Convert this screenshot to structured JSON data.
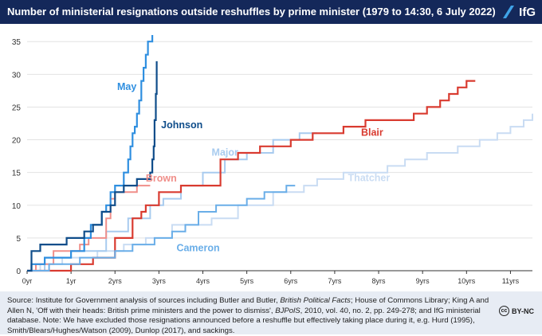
{
  "header": {
    "title": "Number of ministerial resignations outside reshuffles by prime minister (1979 to 14:30, 6 July 2022)",
    "logo_text": "IfG"
  },
  "footer": {
    "source_line1": "Source: Institute for Government analysis of sources including Butler and Butler, ",
    "source_italic1": "British Political Facts",
    "source_line1_end": "; House of Commons Library;",
    "source_line2": "King A and Allen N, 'Off with their heads: British prime ministers and the power to dismiss', ",
    "source_italic2": "BJPolS",
    "source_line2_end": ", 2010, vol. 40, no. 2,",
    "source_line3": "pp. 249-278; and IfG ministerial database. Note: We have excluded those resignations announced before a reshuffle but effectively taking place during it, e.g. Hurd (1995), Smith/Blears/Hughes/Watson (2009), Dunlop (2017), and sackings.",
    "license_icon": "cc",
    "license_text": "BY-NC"
  },
  "chart_data": {
    "type": "line",
    "xlabel": "",
    "ylabel": "",
    "xlim": [
      0,
      11.5
    ],
    "ylim": [
      0,
      36
    ],
    "x_ticks": [
      0,
      1,
      2,
      3,
      4,
      5,
      6,
      7,
      8,
      9,
      10,
      11
    ],
    "x_tick_labels": [
      "0yr",
      "1yr",
      "2yrs",
      "3yrs",
      "4yrs",
      "5yrs",
      "6yrs",
      "7yrs",
      "8yrs",
      "9yrs",
      "10yrs",
      "11yrs"
    ],
    "y_ticks": [
      0,
      5,
      10,
      15,
      20,
      25,
      30,
      35
    ],
    "grid": "horizontal",
    "series": [
      {
        "name": "Thatcher",
        "color": "#c9dcf3",
        "label_at": [
          7.3,
          13.7
        ],
        "points": [
          [
            0,
            0
          ],
          [
            0.3,
            0
          ],
          [
            0.3,
            1
          ],
          [
            0.8,
            1
          ],
          [
            0.8,
            2
          ],
          [
            1.6,
            2
          ],
          [
            1.6,
            3
          ],
          [
            2.2,
            3
          ],
          [
            2.2,
            4
          ],
          [
            2.7,
            4
          ],
          [
            2.7,
            5
          ],
          [
            3.3,
            5
          ],
          [
            3.3,
            7
          ],
          [
            4.2,
            7
          ],
          [
            4.2,
            8
          ],
          [
            4.8,
            8
          ],
          [
            4.8,
            10
          ],
          [
            5.6,
            10
          ],
          [
            5.6,
            12
          ],
          [
            6.3,
            12
          ],
          [
            6.3,
            13
          ],
          [
            6.6,
            13
          ],
          [
            6.6,
            14
          ],
          [
            7.2,
            14
          ],
          [
            7.2,
            15
          ],
          [
            8.2,
            15
          ],
          [
            8.2,
            16
          ],
          [
            8.6,
            16
          ],
          [
            8.6,
            17
          ],
          [
            9.1,
            17
          ],
          [
            9.1,
            18
          ],
          [
            9.8,
            18
          ],
          [
            9.8,
            19
          ],
          [
            10.3,
            19
          ],
          [
            10.3,
            20
          ],
          [
            10.7,
            20
          ],
          [
            10.7,
            21
          ],
          [
            11,
            21
          ],
          [
            11,
            22
          ],
          [
            11.3,
            22
          ],
          [
            11.3,
            23
          ],
          [
            11.5,
            23
          ],
          [
            11.5,
            24
          ]
        ]
      },
      {
        "name": "Major",
        "color": "#a8cbef",
        "label_at": [
          4.2,
          17.6
        ],
        "points": [
          [
            0,
            0
          ],
          [
            0.4,
            0
          ],
          [
            0.4,
            2
          ],
          [
            1.0,
            2
          ],
          [
            1.0,
            3
          ],
          [
            1.8,
            3
          ],
          [
            1.8,
            6
          ],
          [
            2.3,
            6
          ],
          [
            2.3,
            8
          ],
          [
            2.8,
            8
          ],
          [
            2.8,
            10
          ],
          [
            3.1,
            10
          ],
          [
            3.1,
            11
          ],
          [
            3.5,
            11
          ],
          [
            3.5,
            13
          ],
          [
            4.0,
            13
          ],
          [
            4.0,
            15
          ],
          [
            4.5,
            15
          ],
          [
            4.5,
            17
          ],
          [
            5.0,
            17
          ],
          [
            5.0,
            18
          ],
          [
            5.6,
            18
          ],
          [
            5.6,
            20
          ],
          [
            6.2,
            20
          ],
          [
            6.2,
            21
          ],
          [
            6.6,
            21
          ]
        ]
      },
      {
        "name": "Blair",
        "color": "#d93b30",
        "label_at": [
          7.6,
          20.6
        ],
        "points": [
          [
            0,
            0
          ],
          [
            1.0,
            0
          ],
          [
            1.0,
            1
          ],
          [
            1.5,
            1
          ],
          [
            1.5,
            2
          ],
          [
            2.0,
            2
          ],
          [
            2.0,
            5
          ],
          [
            2.4,
            5
          ],
          [
            2.4,
            8
          ],
          [
            2.6,
            8
          ],
          [
            2.6,
            9
          ],
          [
            2.7,
            9
          ],
          [
            2.7,
            10
          ],
          [
            3.0,
            10
          ],
          [
            3.0,
            12
          ],
          [
            3.5,
            12
          ],
          [
            3.5,
            13
          ],
          [
            4.4,
            13
          ],
          [
            4.4,
            17
          ],
          [
            4.8,
            17
          ],
          [
            4.8,
            18
          ],
          [
            5.3,
            18
          ],
          [
            5.3,
            19
          ],
          [
            6.0,
            19
          ],
          [
            6.0,
            20
          ],
          [
            6.5,
            20
          ],
          [
            6.5,
            21
          ],
          [
            7.2,
            21
          ],
          [
            7.2,
            22
          ],
          [
            7.7,
            22
          ],
          [
            7.7,
            23
          ],
          [
            8.8,
            23
          ],
          [
            8.8,
            24
          ],
          [
            9.1,
            24
          ],
          [
            9.1,
            25
          ],
          [
            9.4,
            25
          ],
          [
            9.4,
            26
          ],
          [
            9.6,
            26
          ],
          [
            9.6,
            27
          ],
          [
            9.8,
            27
          ],
          [
            9.8,
            28
          ],
          [
            10.0,
            28
          ],
          [
            10.0,
            29
          ],
          [
            10.2,
            29
          ]
        ]
      },
      {
        "name": "Brown",
        "color": "#f08f8a",
        "label_at": [
          2.7,
          13.6
        ],
        "points": [
          [
            0,
            0
          ],
          [
            0.2,
            0
          ],
          [
            0.2,
            1
          ],
          [
            0.6,
            1
          ],
          [
            0.6,
            3
          ],
          [
            1.2,
            3
          ],
          [
            1.2,
            4
          ],
          [
            1.4,
            4
          ],
          [
            1.4,
            5
          ],
          [
            1.8,
            5
          ],
          [
            1.8,
            8
          ],
          [
            1.9,
            8
          ],
          [
            1.9,
            11
          ],
          [
            2.0,
            11
          ],
          [
            2.0,
            12
          ],
          [
            2.5,
            12
          ],
          [
            2.5,
            13
          ],
          [
            2.8,
            13
          ]
        ]
      },
      {
        "name": "Cameron",
        "color": "#6aaee8",
        "label_at": [
          3.4,
          3.0
        ],
        "points": [
          [
            0,
            0
          ],
          [
            0.5,
            0
          ],
          [
            0.5,
            1
          ],
          [
            1.2,
            1
          ],
          [
            1.2,
            2
          ],
          [
            2.0,
            2
          ],
          [
            2.0,
            3
          ],
          [
            2.4,
            3
          ],
          [
            2.4,
            4
          ],
          [
            2.9,
            4
          ],
          [
            2.9,
            5
          ],
          [
            3.3,
            5
          ],
          [
            3.3,
            6
          ],
          [
            3.6,
            6
          ],
          [
            3.6,
            7
          ],
          [
            3.9,
            7
          ],
          [
            3.9,
            9
          ],
          [
            4.3,
            9
          ],
          [
            4.3,
            10
          ],
          [
            5.0,
            10
          ],
          [
            5.0,
            11
          ],
          [
            5.4,
            11
          ],
          [
            5.4,
            12
          ],
          [
            5.9,
            12
          ],
          [
            5.9,
            13
          ],
          [
            6.1,
            13
          ]
        ]
      },
      {
        "name": "May",
        "color": "#2f8fe0",
        "label_at": [
          2.05,
          27.6
        ],
        "points": [
          [
            0,
            0
          ],
          [
            0.1,
            0
          ],
          [
            0.1,
            1
          ],
          [
            0.4,
            1
          ],
          [
            0.4,
            2
          ],
          [
            1.0,
            2
          ],
          [
            1.0,
            3
          ],
          [
            1.3,
            3
          ],
          [
            1.3,
            5
          ],
          [
            1.45,
            5
          ],
          [
            1.45,
            7
          ],
          [
            1.7,
            7
          ],
          [
            1.7,
            9
          ],
          [
            1.8,
            9
          ],
          [
            1.8,
            10
          ],
          [
            1.9,
            10
          ],
          [
            1.9,
            12
          ],
          [
            2.0,
            12
          ],
          [
            2.0,
            13
          ],
          [
            2.2,
            13
          ],
          [
            2.2,
            15
          ],
          [
            2.3,
            15
          ],
          [
            2.3,
            17
          ],
          [
            2.35,
            17
          ],
          [
            2.35,
            19
          ],
          [
            2.4,
            19
          ],
          [
            2.4,
            21
          ],
          [
            2.45,
            21
          ],
          [
            2.45,
            22
          ],
          [
            2.5,
            22
          ],
          [
            2.5,
            24
          ],
          [
            2.55,
            24
          ],
          [
            2.55,
            26
          ],
          [
            2.6,
            26
          ],
          [
            2.6,
            29
          ],
          [
            2.65,
            29
          ],
          [
            2.65,
            31
          ],
          [
            2.7,
            31
          ],
          [
            2.7,
            33
          ],
          [
            2.75,
            33
          ],
          [
            2.75,
            35
          ],
          [
            2.85,
            35
          ],
          [
            2.85,
            36
          ]
        ]
      },
      {
        "name": "Johnson",
        "color": "#0f4d8a",
        "label_at": [
          3.05,
          21.8
        ],
        "points": [
          [
            0,
            0
          ],
          [
            0.1,
            0
          ],
          [
            0.1,
            3
          ],
          [
            0.3,
            3
          ],
          [
            0.3,
            4
          ],
          [
            0.9,
            4
          ],
          [
            0.9,
            5
          ],
          [
            1.3,
            5
          ],
          [
            1.3,
            6
          ],
          [
            1.5,
            6
          ],
          [
            1.5,
            7
          ],
          [
            1.7,
            7
          ],
          [
            1.7,
            9
          ],
          [
            1.9,
            9
          ],
          [
            1.9,
            10
          ],
          [
            2.0,
            10
          ],
          [
            2.0,
            12
          ],
          [
            2.2,
            12
          ],
          [
            2.2,
            13
          ],
          [
            2.5,
            13
          ],
          [
            2.5,
            14
          ],
          [
            2.8,
            14
          ],
          [
            2.8,
            15
          ],
          [
            2.85,
            15
          ],
          [
            2.85,
            17
          ],
          [
            2.88,
            17
          ],
          [
            2.88,
            19
          ],
          [
            2.9,
            19
          ],
          [
            2.9,
            23
          ],
          [
            2.93,
            23
          ],
          [
            2.93,
            27
          ],
          [
            2.95,
            27
          ],
          [
            2.95,
            32
          ]
        ]
      }
    ]
  }
}
